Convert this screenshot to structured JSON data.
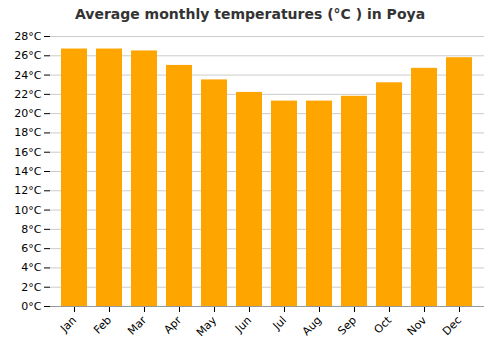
{
  "chart_data": {
    "type": "bar",
    "title": "Average monthly temperatures (°C ) in Poya",
    "categories": [
      "Jan",
      "Feb",
      "Mar",
      "Apr",
      "May",
      "Jun",
      "Jul",
      "Aug",
      "Sep",
      "Oct",
      "Nov",
      "Dec"
    ],
    "values": [
      26.7,
      26.7,
      26.5,
      25.0,
      23.5,
      22.2,
      21.3,
      21.3,
      21.8,
      23.2,
      24.7,
      25.8
    ],
    "color": "#FFA500",
    "ylim": [
      0,
      28
    ],
    "yticks": [
      {
        "value": 0,
        "label": "0°C"
      },
      {
        "value": 2,
        "label": "2°C"
      },
      {
        "value": 4,
        "label": "4°C"
      },
      {
        "value": 6,
        "label": "6°C"
      },
      {
        "value": 8,
        "label": "8°C"
      },
      {
        "value": 10,
        "label": "10°C"
      },
      {
        "value": 12,
        "label": "12°C"
      },
      {
        "value": 14,
        "label": "14°C"
      },
      {
        "value": 16,
        "label": "16°C"
      },
      {
        "value": 18,
        "label": "18°C"
      },
      {
        "value": 20,
        "label": "20°C"
      },
      {
        "value": 22,
        "label": "22°C"
      },
      {
        "value": 24,
        "label": "24°C"
      },
      {
        "value": 26,
        "label": "26°C"
      },
      {
        "value": 28,
        "label": "28°C"
      }
    ],
    "grid": true
  }
}
